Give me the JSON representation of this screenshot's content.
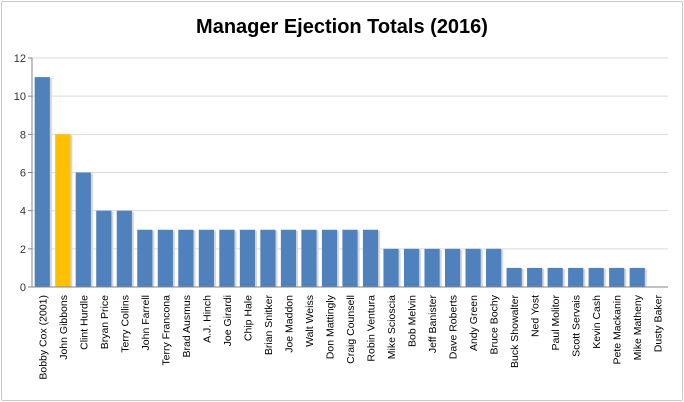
{
  "chart_data": {
    "type": "bar",
    "title": "Manager Ejection Totals (2016)",
    "xlabel": "",
    "ylabel": "",
    "ylim": [
      0,
      12
    ],
    "yticks": [
      0,
      2,
      4,
      6,
      8,
      10,
      12
    ],
    "grid": true,
    "legend": "none",
    "categories": [
      "Bobby Cox (2001)",
      "John Gibbons",
      "Clint Hurdle",
      "Bryan Price",
      "Terry Collins",
      "John Farrell",
      "Terry Francona",
      "Brad Ausmus",
      "A.J. Hinch",
      "Joe Girardi",
      "Chip Hale",
      "Brian Snitker",
      "Joe Maddon",
      "Walt Weiss",
      "Don Mattingly",
      "Craig Counsell",
      "Robin Ventura",
      "Mike Scioscia",
      "Bob Melvin",
      "Jeff Banister",
      "Dave Roberts",
      "Andy Green",
      "Bruce Bochy",
      "Buck Showalter",
      "Ned Yost",
      "Paul Molitor",
      "Scott Servais",
      "Kevin Cash",
      "Pete Mackanin",
      "Mike Matheny",
      "Dusty Baker"
    ],
    "values": [
      11,
      8,
      6,
      4,
      4,
      3,
      3,
      3,
      3,
      3,
      3,
      3,
      3,
      3,
      3,
      3,
      3,
      2,
      2,
      2,
      2,
      2,
      2,
      1,
      1,
      1,
      1,
      1,
      1,
      1,
      0
    ],
    "highlight_index": 1,
    "colors": {
      "bar": "#4f81bd",
      "highlight": "#ffc000",
      "grid": "#d9d9d9",
      "axis": "#868686"
    }
  }
}
